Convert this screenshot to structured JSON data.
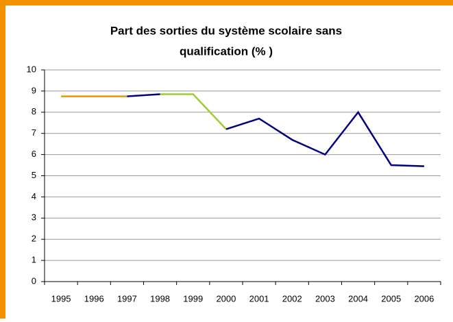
{
  "chart_data": {
    "type": "line",
    "title": [
      "Part des sorties du système scolaire sans",
      "qualification (% )"
    ],
    "categories": [
      "1995",
      "1996",
      "1997",
      "1998",
      "1999",
      "2000",
      "2001",
      "2002",
      "2003",
      "2004",
      "2005",
      "2006"
    ],
    "series": [
      {
        "color": "#f39200",
        "values": [
          8.75,
          8.75,
          8.75,
          null,
          null,
          null,
          null,
          null,
          null,
          null,
          null,
          null
        ]
      },
      {
        "color": "#9acd32",
        "values": [
          null,
          null,
          null,
          8.85,
          8.85,
          7.2,
          null,
          null,
          null,
          null,
          null,
          null
        ]
      },
      {
        "color": "#000080",
        "values": [
          null,
          null,
          8.75,
          8.85,
          null,
          7.2,
          7.7,
          6.7,
          6.0,
          8.0,
          5.5,
          5.45
        ]
      }
    ],
    "ylim": [
      0,
      10
    ],
    "yticks": [
      0,
      1,
      2,
      3,
      4,
      5,
      6,
      7,
      8,
      9,
      10
    ],
    "grid": true
  }
}
